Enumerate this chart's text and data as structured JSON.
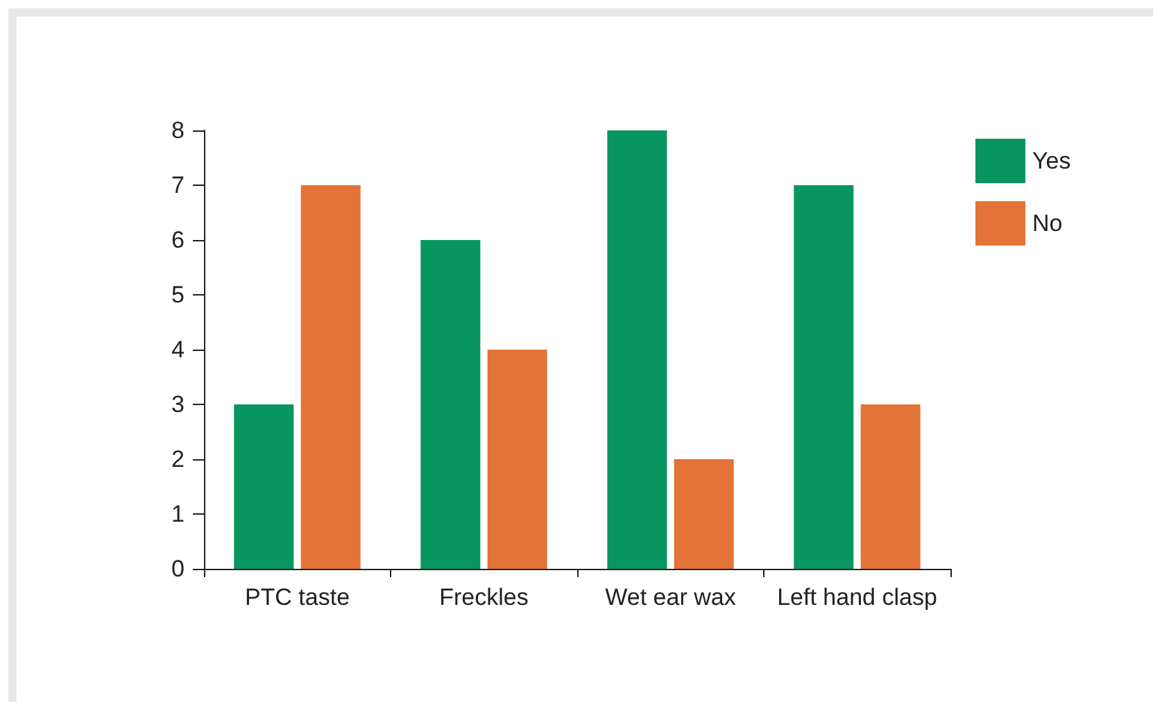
{
  "chart_data": {
    "type": "bar",
    "categories": [
      "PTC taste",
      "Freckles",
      "Wet ear wax",
      "Left hand clasp"
    ],
    "series": [
      {
        "name": "Yes",
        "color": "#079660",
        "values": [
          3,
          6,
          8,
          7
        ]
      },
      {
        "name": "No",
        "color": "#e37336",
        "values": [
          7,
          4,
          2,
          3
        ]
      }
    ],
    "ylim": [
      0,
      8
    ],
    "yticks": [
      0,
      1,
      2,
      3,
      4,
      5,
      6,
      7,
      8
    ],
    "grid": false,
    "legend": "top right"
  }
}
